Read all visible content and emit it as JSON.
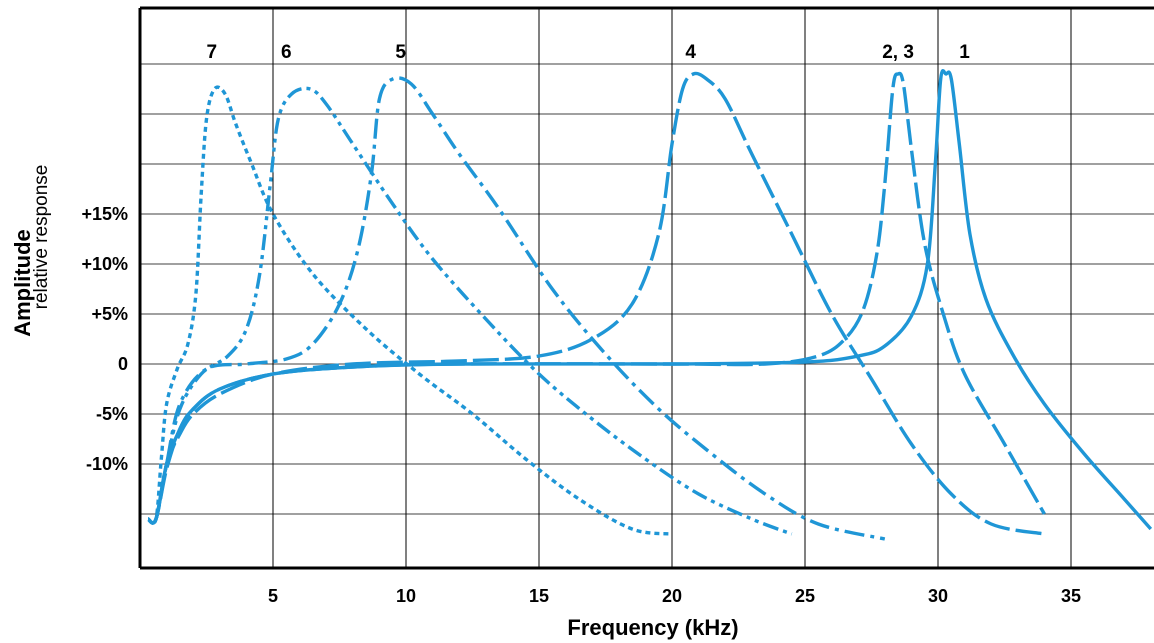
{
  "chart_data": {
    "type": "line",
    "title": "",
    "xlabel": "Frequency (kHz)",
    "ylabel": "Amplitude",
    "ylabel_sub": "relative response",
    "xlim": [
      0,
      38
    ],
    "x_ticks": [
      {
        "value": 5,
        "label": "5"
      },
      {
        "value": 10,
        "label": "10"
      },
      {
        "value": 15,
        "label": "15"
      },
      {
        "value": 20,
        "label": "20"
      },
      {
        "value": 25,
        "label": "25"
      },
      {
        "value": 30,
        "label": "30"
      },
      {
        "value": 35,
        "label": "35"
      }
    ],
    "y_ticks": [
      {
        "value": 15,
        "label": "+15%"
      },
      {
        "value": 10,
        "label": "+10%"
      },
      {
        "value": 5,
        "label": "+5%"
      },
      {
        "value": 0,
        "label": "0"
      },
      {
        "value": -5,
        "label": "-5%"
      },
      {
        "value": -10,
        "label": "-10%"
      }
    ],
    "ylim": [
      -21,
      36
    ],
    "grid": "on",
    "line_color": "#1f96d6",
    "series": [
      {
        "name": "1",
        "dash": "solid",
        "label_x": 31.0,
        "points": [
          [
            0.3,
            -15.5
          ],
          [
            0.6,
            -15.5
          ],
          [
            1.0,
            -10
          ],
          [
            1.5,
            -6.5
          ],
          [
            2,
            -4.5
          ],
          [
            3,
            -2.5
          ],
          [
            5,
            -1
          ],
          [
            8,
            -0.3
          ],
          [
            12,
            0
          ],
          [
            20,
            0
          ],
          [
            25,
            0.2
          ],
          [
            27,
            0.8
          ],
          [
            28,
            1.8
          ],
          [
            29,
            4.8
          ],
          [
            29.6,
            10
          ],
          [
            29.9,
            20
          ],
          [
            30.1,
            28.5
          ],
          [
            30.3,
            29
          ],
          [
            30.5,
            28.5
          ],
          [
            30.8,
            22
          ],
          [
            31.2,
            13
          ],
          [
            31.8,
            6.5
          ],
          [
            32.8,
            1
          ],
          [
            34,
            -4
          ],
          [
            35.5,
            -9
          ],
          [
            37,
            -13.5
          ],
          [
            38,
            -16.5
          ]
        ]
      },
      {
        "name": "2, 3",
        "dash": "longdash",
        "label_x": 28.5,
        "points": [
          [
            0.3,
            -15.5
          ],
          [
            0.6,
            -15.5
          ],
          [
            1.0,
            -10.5
          ],
          [
            1.5,
            -6.5
          ],
          [
            2,
            -4.5
          ],
          [
            3,
            -2.5
          ],
          [
            5,
            -1
          ],
          [
            8,
            -0.3
          ],
          [
            12,
            0
          ],
          [
            20,
            0
          ],
          [
            23.5,
            0
          ],
          [
            25.5,
            0.8
          ],
          [
            26.5,
            2.5
          ],
          [
            27.2,
            5.5
          ],
          [
            27.7,
            11
          ],
          [
            28,
            18
          ],
          [
            28.3,
            27.5
          ],
          [
            28.5,
            29
          ],
          [
            28.7,
            28
          ],
          [
            29.0,
            21.5
          ],
          [
            29.5,
            12
          ],
          [
            30.2,
            5
          ],
          [
            31,
            -1
          ],
          [
            32.5,
            -8
          ],
          [
            34,
            -15
          ]
        ]
      },
      {
        "name": "4",
        "dash": "longdash",
        "label_x": 20.7,
        "points": [
          [
            0.3,
            -15.5
          ],
          [
            0.6,
            -15.5
          ],
          [
            1.0,
            -10
          ],
          [
            1.5,
            -7
          ],
          [
            2,
            -5
          ],
          [
            3,
            -3
          ],
          [
            5,
            -1
          ],
          [
            8,
            0
          ],
          [
            12,
            0.3
          ],
          [
            15,
            0.8
          ],
          [
            17,
            2.5
          ],
          [
            18.5,
            6
          ],
          [
            19.5,
            13
          ],
          [
            20.0,
            22
          ],
          [
            20.4,
            27.5
          ],
          [
            20.8,
            29
          ],
          [
            21.3,
            28.5
          ],
          [
            22,
            26.5
          ],
          [
            23,
            21
          ],
          [
            24.5,
            13
          ],
          [
            26,
            5
          ],
          [
            27.5,
            -1.5
          ],
          [
            29,
            -8
          ],
          [
            30.5,
            -13
          ],
          [
            32,
            -16
          ],
          [
            34,
            -17
          ]
        ]
      },
      {
        "name": "5",
        "dash": "dashdot",
        "label_x": 9.8,
        "points": [
          [
            0.3,
            -15.5
          ],
          [
            0.6,
            -15.5
          ],
          [
            1.0,
            -10
          ],
          [
            1.5,
            -4
          ],
          [
            2.5,
            -0.5
          ],
          [
            4,
            0
          ],
          [
            5.5,
            0.5
          ],
          [
            6.5,
            2
          ],
          [
            7.5,
            6
          ],
          [
            8.2,
            11.5
          ],
          [
            8.7,
            19
          ],
          [
            9.0,
            26.5
          ],
          [
            9.5,
            28.5
          ],
          [
            10.2,
            28
          ],
          [
            11,
            25
          ],
          [
            12,
            21
          ],
          [
            13.5,
            15.5
          ],
          [
            15.5,
            7.5
          ],
          [
            17.5,
            1
          ],
          [
            19.5,
            -4.5
          ],
          [
            21.5,
            -9
          ],
          [
            23.5,
            -13
          ],
          [
            25.5,
            -16
          ],
          [
            28,
            -17.5
          ]
        ]
      },
      {
        "name": "6",
        "dash": "dashdotdot",
        "label_x": 5.5,
        "points": [
          [
            0.3,
            -15.5
          ],
          [
            0.6,
            -15.5
          ],
          [
            1.0,
            -10
          ],
          [
            1.5,
            -4.5
          ],
          [
            2.3,
            -1
          ],
          [
            3.3,
            0.8
          ],
          [
            4,
            3.5
          ],
          [
            4.5,
            9
          ],
          [
            4.9,
            18
          ],
          [
            5.2,
            24.5
          ],
          [
            5.7,
            27
          ],
          [
            6.4,
            27.5
          ],
          [
            7.0,
            26
          ],
          [
            8,
            22
          ],
          [
            9.5,
            16
          ],
          [
            11,
            10.5
          ],
          [
            13,
            4.5
          ],
          [
            15,
            -1
          ],
          [
            17,
            -5.5
          ],
          [
            19,
            -9.5
          ],
          [
            21,
            -13
          ],
          [
            23,
            -15.5
          ],
          [
            24.5,
            -17
          ]
        ]
      },
      {
        "name": "7",
        "dash": "dotted",
        "label_x": 2.7,
        "points": [
          [
            0.3,
            -15.5
          ],
          [
            0.6,
            -15.5
          ],
          [
            0.8,
            -9.5
          ],
          [
            1.0,
            -4
          ],
          [
            1.4,
            -0.5
          ],
          [
            1.8,
            2
          ],
          [
            2.1,
            7
          ],
          [
            2.3,
            17
          ],
          [
            2.5,
            24.5
          ],
          [
            2.8,
            27.5
          ],
          [
            3.2,
            27
          ],
          [
            3.6,
            24
          ],
          [
            4.2,
            20
          ],
          [
            5,
            15
          ],
          [
            6.5,
            9
          ],
          [
            8.5,
            3.5
          ],
          [
            10.5,
            -1
          ],
          [
            12.5,
            -5
          ],
          [
            14.5,
            -9.5
          ],
          [
            16.5,
            -13.5
          ],
          [
            18.5,
            -16.5
          ],
          [
            20,
            -17
          ]
        ]
      }
    ]
  }
}
